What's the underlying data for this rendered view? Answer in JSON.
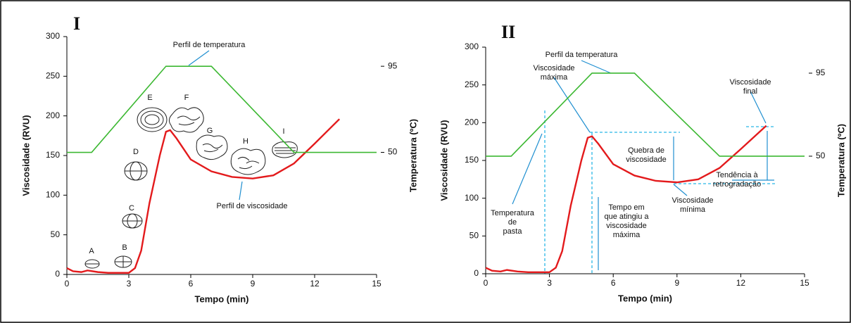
{
  "chart_data": [
    {
      "type": "line",
      "panel": "I",
      "xlabel": "Tempo (min)",
      "ylabel": "Viscosidade (RVU)",
      "y2label": "Temperatura (ºC)",
      "xlim": [
        0,
        15
      ],
      "xticks": [
        0,
        3,
        6,
        9,
        12,
        15
      ],
      "ylim": [
        0,
        300
      ],
      "yticks": [
        0,
        50,
        100,
        150,
        200,
        250,
        300
      ],
      "y2lim": [
        -13.8,
        110.5
      ],
      "y2ticks": [
        50,
        95
      ],
      "series": [
        {
          "color": "#e31a1c",
          "x": [
            0,
            0.3,
            0.7,
            1,
            1.5,
            2,
            3,
            3.3,
            3.6,
            4,
            4.5,
            4.8,
            5,
            5.3,
            6,
            7,
            8,
            9,
            10,
            11,
            12,
            13.2
          ],
          "values": [
            8,
            4,
            3,
            5,
            3,
            2,
            2,
            8,
            30,
            90,
            150,
            180,
            182,
            172,
            145,
            130,
            123,
            121,
            125,
            140,
            165,
            196
          ]
        },
        {
          "color": "#3cb832",
          "axis": "y2",
          "x": [
            0,
            1.2,
            4.8,
            7.0,
            11.0,
            15
          ],
          "values": [
            50,
            50,
            95,
            95,
            50,
            50
          ]
        }
      ],
      "annotations": [
        [
          "Perfil de temperatura"
        ],
        [
          "Perfil de viscosidade"
        ],
        [
          "A"
        ],
        [
          "B"
        ],
        [
          "C"
        ],
        [
          "D"
        ],
        [
          "E"
        ],
        [
          "F"
        ],
        [
          "G"
        ],
        [
          "H"
        ],
        [
          "I"
        ]
      ]
    },
    {
      "type": "line",
      "panel": "II",
      "xlabel": "Tempo (min)",
      "ylabel": "Viscosidade (RVU)",
      "y2label": "Temperatura (ºC)",
      "xlim": [
        0,
        15
      ],
      "xticks": [
        0,
        3,
        6,
        9,
        12,
        15
      ],
      "ylim": [
        0,
        300
      ],
      "yticks": [
        0,
        50,
        100,
        150,
        200,
        250,
        300
      ],
      "y2lim": [
        -13.7,
        109.1
      ],
      "y2ticks": [
        50,
        95
      ],
      "series": [
        {
          "color": "#e31a1c",
          "x": [
            0,
            0.3,
            0.7,
            1,
            1.5,
            2,
            3,
            3.3,
            3.6,
            4,
            4.5,
            4.8,
            5,
            5.3,
            6,
            7,
            8,
            9,
            10,
            11,
            12,
            13.2
          ],
          "values": [
            8,
            4,
            3,
            5,
            3,
            2,
            2,
            8,
            30,
            90,
            150,
            180,
            182,
            172,
            145,
            130,
            123,
            121,
            125,
            140,
            165,
            196
          ]
        },
        {
          "color": "#3cb832",
          "axis": "y2",
          "x": [
            0,
            1.2,
            5.0,
            7.0,
            11.0,
            15
          ],
          "values": [
            50,
            50,
            95,
            95,
            50,
            50
          ]
        }
      ],
      "annotations": [
        [
          "Perfil da temperatura"
        ],
        [
          "Viscosidade",
          "máxima"
        ],
        [
          "Viscosidade",
          "final"
        ],
        [
          "Quebra de",
          "viscosidade"
        ],
        [
          "Tendência à",
          "retrogradação"
        ],
        [
          "Viscosidade",
          "mínima"
        ],
        [
          "Temperatura",
          "de",
          "pasta"
        ],
        [
          "Tempo em",
          "que atingiu a",
          "viscosidade",
          "máxima"
        ]
      ]
    }
  ]
}
